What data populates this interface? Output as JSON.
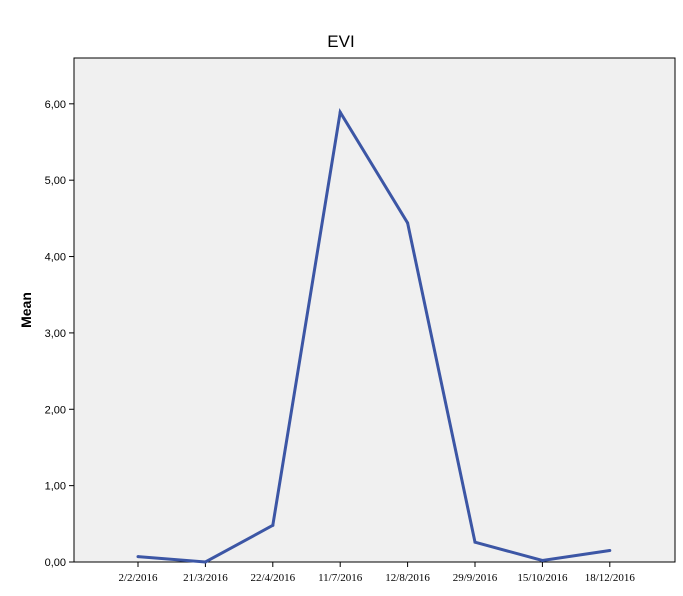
{
  "chart_data": {
    "type": "line",
    "title": "EVI",
    "xlabel": "",
    "ylabel": "Mean",
    "categories": [
      "2/2/2016",
      "21/3/2016",
      "22/4/2016",
      "11/7/2016",
      "12/8/2016",
      "29/9/2016",
      "15/10/2016",
      "18/12/2016"
    ],
    "series": [
      {
        "values": [
          0.07,
          0.0,
          0.48,
          5.89,
          4.44,
          0.26,
          0.02,
          0.15
        ]
      }
    ],
    "ylim": [
      0,
      6.6
    ],
    "yticks": [
      0,
      1,
      2,
      3,
      4,
      5,
      6
    ],
    "ytick_labels": [
      "0,00",
      "1,00",
      "2,00",
      "3,00",
      "4,00",
      "5,00",
      "6,00"
    ],
    "grid": false,
    "legend": "none",
    "colors": {
      "line": "#3c56a5",
      "plot_background": "#f0f0f0",
      "axis": "#000000"
    }
  }
}
